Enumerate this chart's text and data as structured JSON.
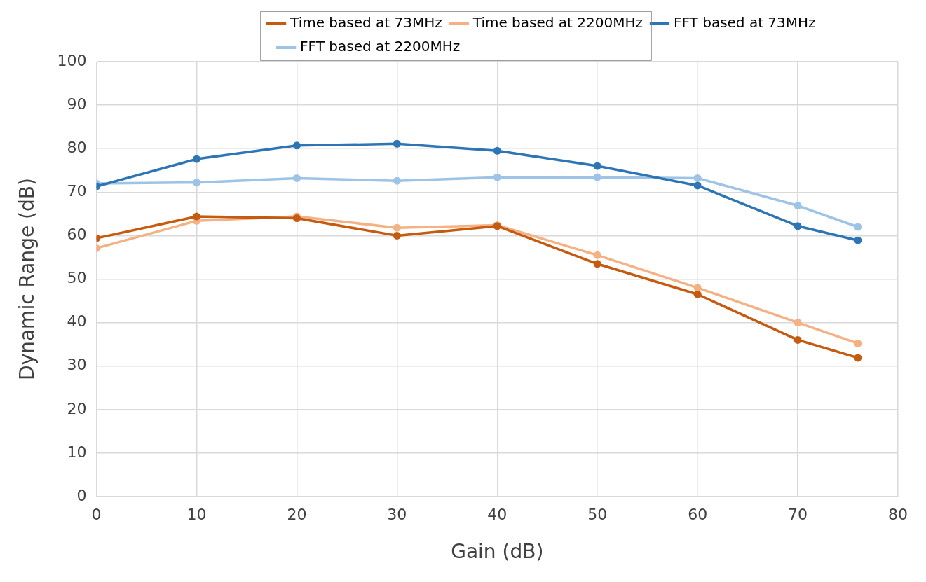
{
  "chart_data": {
    "type": "line",
    "xlabel": "Gain (dB)",
    "ylabel": "Dynamic Range (dB)",
    "x": [
      0,
      10,
      20,
      30,
      40,
      50,
      60,
      70,
      76
    ],
    "series": [
      {
        "name": "Time based at 73MHz",
        "color": "#c55a11",
        "values": [
          59.4,
          64.4,
          64.0,
          60.0,
          62.2,
          53.5,
          46.5,
          36.0,
          31.9
        ]
      },
      {
        "name": "Time based at 2200MHz",
        "color": "#f4b183",
        "values": [
          57.1,
          63.4,
          64.4,
          61.8,
          62.4,
          55.5,
          48.0,
          40.0,
          35.2
        ]
      },
      {
        "name": "FFT based at 73MHz",
        "color": "#2e75b6",
        "values": [
          71.3,
          77.6,
          80.7,
          81.1,
          79.5,
          76.0,
          71.5,
          62.2,
          58.9
        ]
      },
      {
        "name": "FFT based at 2200MHz",
        "color": "#9dc3e6",
        "values": [
          72.0,
          72.2,
          73.2,
          72.6,
          73.4,
          73.4,
          73.2,
          66.9,
          62.0
        ]
      }
    ],
    "xlim": [
      0,
      80
    ],
    "xticks": [
      0,
      10,
      20,
      30,
      40,
      50,
      60,
      70,
      80
    ],
    "ylim": [
      0,
      100
    ],
    "yticks": [
      0,
      10,
      20,
      30,
      40,
      50,
      60,
      70,
      80,
      90,
      100
    ],
    "grid": true,
    "legend": "top",
    "marker": "circle",
    "line_style": "solid"
  }
}
